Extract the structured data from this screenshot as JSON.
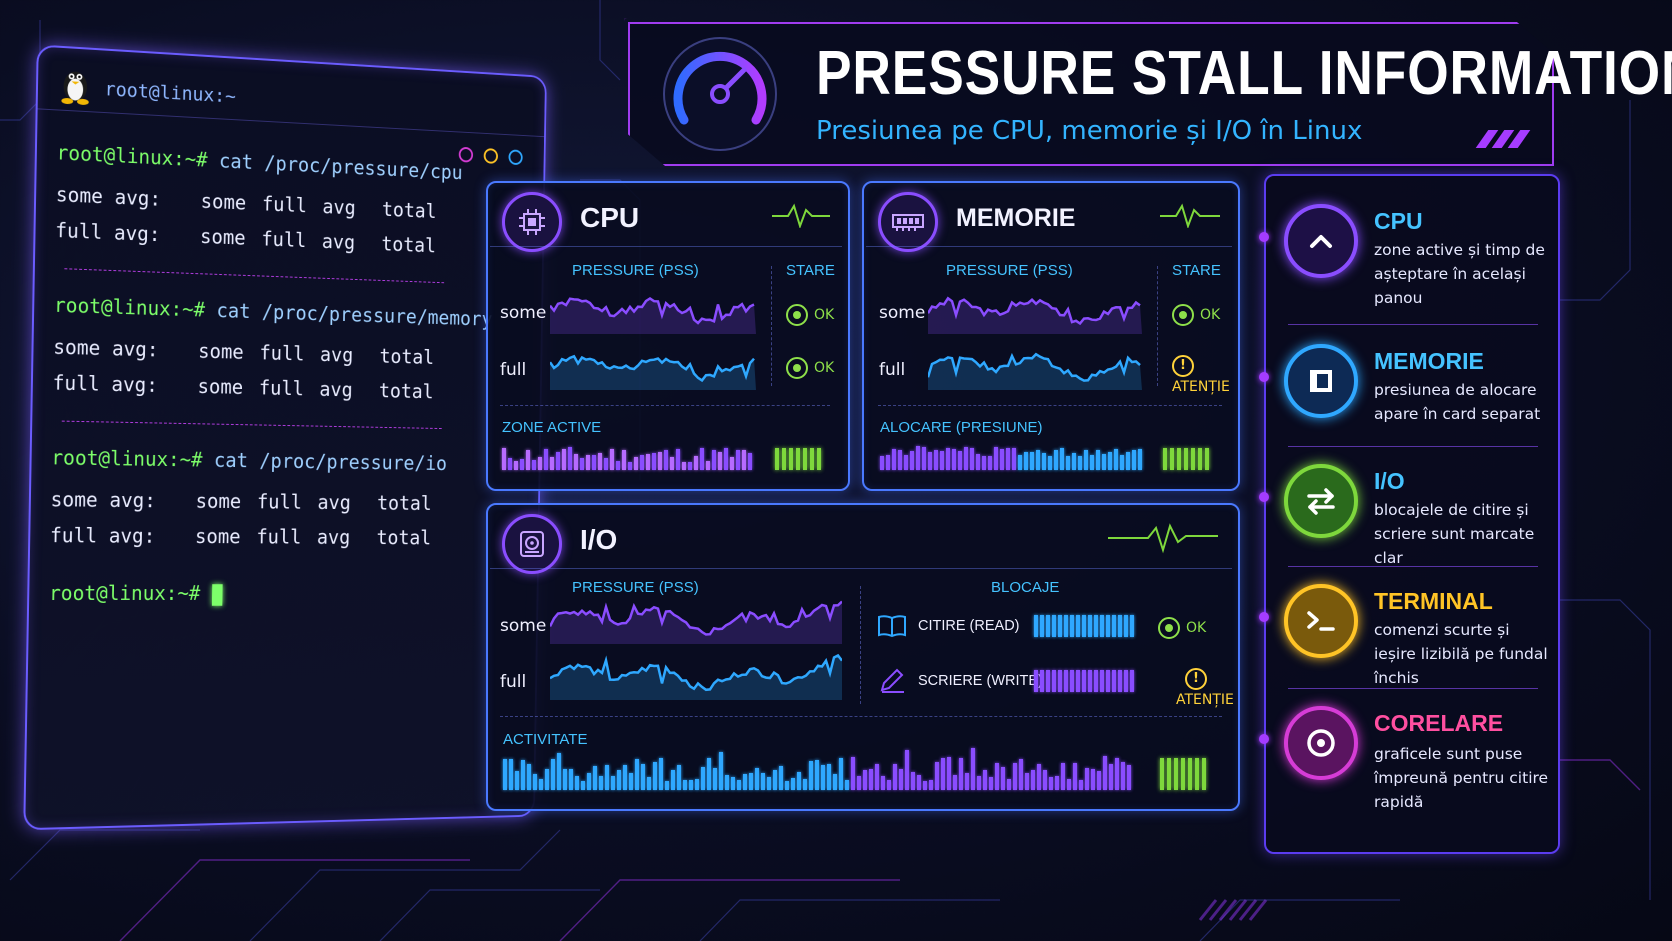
{
  "terminal": {
    "window_title": "root@linux:~",
    "sections": [
      {
        "prompt": "root@linux:~#",
        "command": "cat /proc/pressure/cpu",
        "rows": [
          {
            "label": "some avg:",
            "cols": [
              "some",
              "full",
              "avg",
              "total"
            ]
          },
          {
            "label": "full avg:",
            "cols": [
              "some",
              "full",
              "avg",
              "total"
            ]
          }
        ]
      },
      {
        "prompt": "root@linux:~#",
        "command": "cat /proc/pressure/memory",
        "rows": [
          {
            "label": "some avg:",
            "cols": [
              "some",
              "full",
              "avg",
              "total"
            ]
          },
          {
            "label": "full avg:",
            "cols": [
              "some",
              "full",
              "avg",
              "total"
            ]
          }
        ]
      },
      {
        "prompt": "root@linux:~#",
        "command": "cat /proc/pressure/io",
        "rows": [
          {
            "label": "some avg:",
            "cols": [
              "some",
              "full",
              "avg",
              "total"
            ]
          },
          {
            "label": "full avg:",
            "cols": [
              "some",
              "full",
              "avg",
              "total"
            ]
          }
        ]
      }
    ],
    "final_prompt": "root@linux:~#"
  },
  "header": {
    "title": "PRESSURE STALL INFORMATION",
    "subtitle": "Presiunea pe CPU, memorie și I/O în Linux",
    "icon": "speedometer-icon"
  },
  "cpu_panel": {
    "title": "CPU",
    "icon": "cpu-chip-icon",
    "pressure_label": "PRESSURE (PSS)",
    "state_label": "STARE",
    "rows": [
      {
        "label": "some",
        "status": "OK"
      },
      {
        "label": "full",
        "status": "OK"
      }
    ],
    "bottom_label": "ZONE ACTIVE"
  },
  "memory_panel": {
    "title": "MEMORIE",
    "icon": "memory-module-icon",
    "pressure_label": "PRESSURE (PSS)",
    "state_label": "STARE",
    "rows": [
      {
        "label": "some",
        "status": "OK"
      },
      {
        "label": "full",
        "status": "ATENȚIE"
      }
    ],
    "bottom_label": "ALOCARE (PRESIUNE)"
  },
  "io_panel": {
    "title": "I/O",
    "icon": "hard-disk-icon",
    "pressure_label": "PRESSURE (PSS)",
    "rows": [
      {
        "label": "some"
      },
      {
        "label": "full"
      }
    ],
    "blocks_label": "BLOCAJE",
    "blocks": [
      {
        "label": "CITIRE (READ)",
        "icon": "book-icon",
        "status": "OK"
      },
      {
        "label": "SCRIERE (WRITE)",
        "icon": "pencil-icon",
        "status": "ATENȚIE"
      }
    ],
    "bottom_label": "ACTIVITATE"
  },
  "legend": {
    "items": [
      {
        "title": "CPU",
        "desc": "zone active și timp de așteptare în același panou",
        "color": "#8a4dff",
        "icon": "chevron-up-icon"
      },
      {
        "title": "MEMORIE",
        "desc": "presiunea de alocare apare în card separat",
        "color": "#2fa8ff",
        "icon": "square-panel-icon"
      },
      {
        "title": "I/O",
        "desc": "blocajele de citire și scriere sunt marcate clar",
        "color": "#7ed83c",
        "icon": "swap-arrows-icon"
      },
      {
        "title": "TERMINAL",
        "desc": "comenzi scurte și ieșire lizibilă pe fundal închis",
        "color": "#ffc426",
        "icon": "terminal-prompt-icon"
      },
      {
        "title": "CORELARE",
        "desc": "graficele sunt puse împreună pentru citire rapidă",
        "color": "#d63cd6",
        "icon": "target-icon"
      }
    ]
  },
  "colors": {
    "accent_purple": "#8a4dff",
    "accent_blue": "#33b4ff",
    "ok_green": "#8ee04a",
    "warn_yellow": "#ffd23a"
  }
}
